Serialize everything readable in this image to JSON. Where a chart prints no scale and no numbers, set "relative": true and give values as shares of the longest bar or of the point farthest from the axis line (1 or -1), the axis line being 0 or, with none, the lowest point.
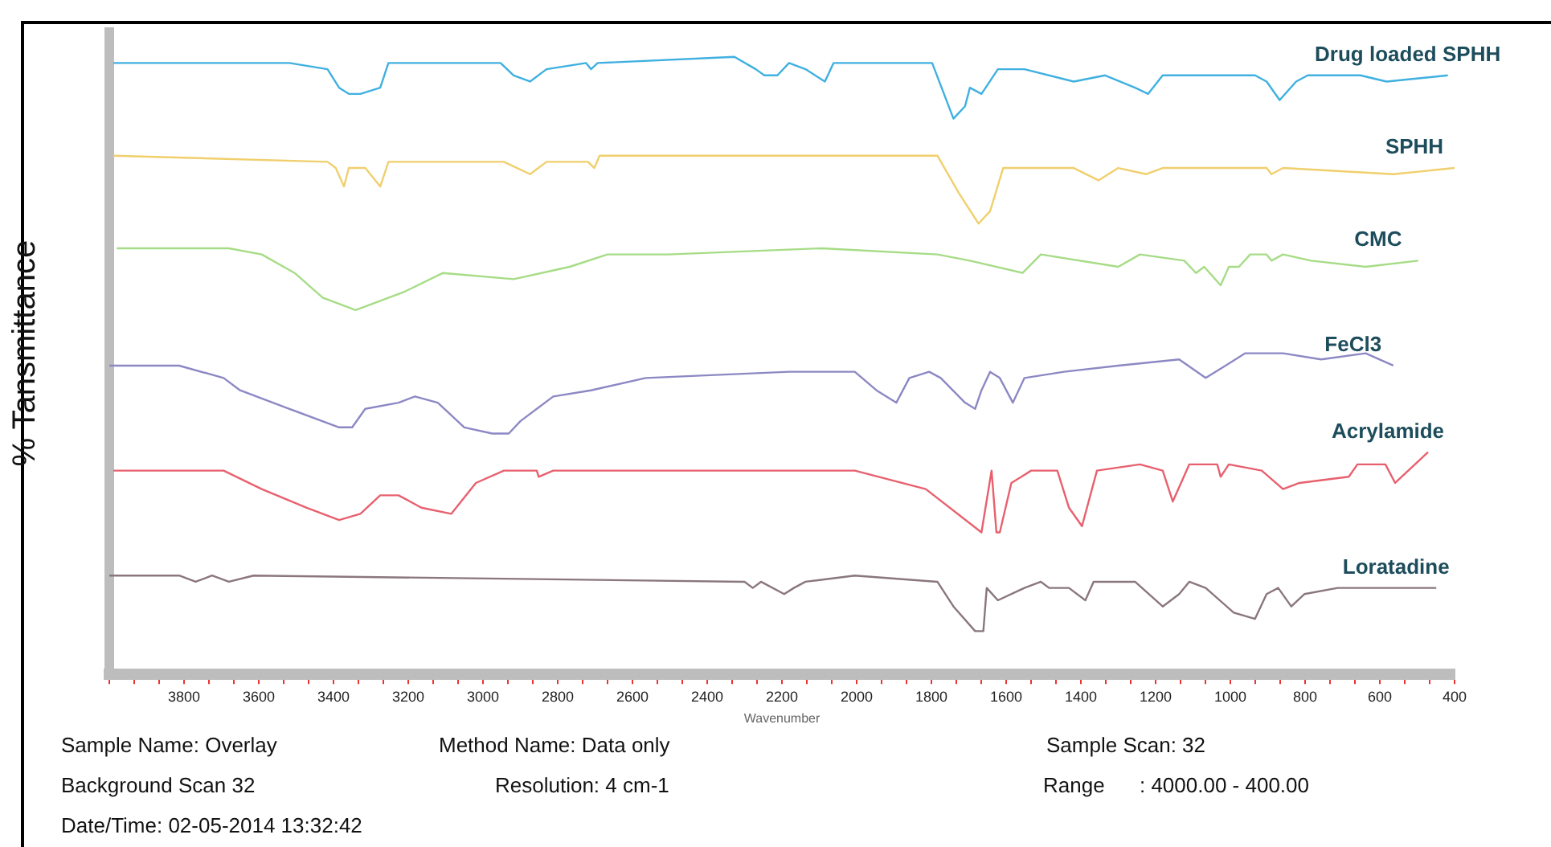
{
  "chart_data": {
    "type": "line",
    "relative": true,
    "xlabel": "Wavenumber",
    "ylabel": "% Tansmittance",
    "xlim": [
      4000,
      400
    ],
    "xticks": [
      {
        "value": 4000,
        "label": null
      },
      {
        "value": 3933.3,
        "label": null
      },
      {
        "value": 3866.7,
        "label": null
      },
      3800,
      {
        "value": 3733.3,
        "label": null
      },
      {
        "value": 3666.7,
        "label": null
      },
      3600,
      {
        "value": 3533.3,
        "label": null
      },
      {
        "value": 3466.7,
        "label": null
      },
      3400,
      {
        "value": 3333.3,
        "label": null
      },
      {
        "value": 3266.7,
        "label": null
      },
      3200,
      {
        "value": 3133.3,
        "label": null
      },
      {
        "value": 3066.7,
        "label": null
      },
      3000,
      {
        "value": 2933.3,
        "label": null
      },
      {
        "value": 2866.7,
        "label": null
      },
      2800,
      {
        "value": 2733.3,
        "label": null
      },
      {
        "value": 2666.7,
        "label": null
      },
      2600,
      {
        "value": 2533.3,
        "label": null
      },
      {
        "value": 2466.7,
        "label": null
      },
      2400,
      {
        "value": 2333.3,
        "label": null
      },
      {
        "value": 2266.7,
        "label": null
      },
      2200,
      {
        "value": 2133.3,
        "label": null
      },
      {
        "value": 2066.7,
        "label": null
      },
      2000,
      {
        "value": 1933.3,
        "label": null
      },
      {
        "value": 1866.7,
        "label": null
      },
      1800,
      {
        "value": 1733.3,
        "label": null
      },
      {
        "value": 1666.7,
        "label": null
      },
      1600,
      {
        "value": 1533.3,
        "label": null
      },
      {
        "value": 1466.7,
        "label": null
      },
      1400,
      {
        "value": 1333.3,
        "label": null
      },
      {
        "value": 1266.7,
        "label": null
      },
      1200,
      {
        "value": 1133.3,
        "label": null
      },
      {
        "value": 1066.7,
        "label": null
      },
      1000,
      {
        "value": 933.3,
        "label": null
      },
      {
        "value": 866.7,
        "label": null
      },
      800,
      {
        "value": 733.3,
        "label": null
      },
      {
        "value": 666.7,
        "label": null
      },
      600,
      {
        "value": 533.3,
        "label": null
      },
      {
        "value": 466.7,
        "label": null
      },
      400
    ],
    "grid": false,
    "legend": false,
    "marker": "none",
    "line_style": "solid",
    "series": [
      {
        "name": "Drug loaded SPHH",
        "color": "#3fb0e0",
        "x": [
          3989,
          3518,
          3416,
          3385,
          3359,
          3328,
          3275,
          3253,
          2953,
          2918,
          2874,
          2830,
          2724,
          2711,
          2693,
          2327,
          2270,
          2247,
          2212,
          2181,
          2137,
          2085,
          2062,
          1798,
          1741,
          1710,
          1697,
          1666,
          1622,
          1551,
          1419,
          1335,
          1255,
          1220,
          1181,
          934,
          903,
          868,
          824,
          793,
          652,
          582,
          418
        ],
        "values": [
          0.99,
          0.99,
          0.98,
          0.95,
          0.94,
          0.94,
          0.95,
          0.99,
          0.99,
          0.97,
          0.96,
          0.98,
          0.99,
          0.98,
          0.99,
          1,
          0.98,
          0.97,
          0.97,
          0.99,
          0.98,
          0.96,
          0.99,
          0.99,
          0.9,
          0.92,
          0.95,
          0.94,
          0.98,
          0.98,
          0.96,
          0.97,
          0.95,
          0.94,
          0.97,
          0.97,
          0.96,
          0.93,
          0.96,
          0.97,
          0.97,
          0.96,
          0.97
        ]
      },
      {
        "name": "SPHH",
        "color": "#f0cf6c",
        "x": [
          3989,
          3416,
          3394,
          3372,
          3359,
          3315,
          3275,
          3253,
          2944,
          2874,
          2830,
          2719,
          2702,
          2688,
          2181,
          2150,
          2093,
          1784,
          1727,
          1674,
          1643,
          1608,
          1419,
          1353,
          1300,
          1225,
          1181,
          903,
          890,
          859,
          564,
          400
        ],
        "values": [
          0.84,
          0.83,
          0.82,
          0.79,
          0.82,
          0.82,
          0.79,
          0.83,
          0.83,
          0.81,
          0.83,
          0.83,
          0.82,
          0.84,
          0.84,
          0.84,
          0.84,
          0.84,
          0.78,
          0.73,
          0.75,
          0.82,
          0.82,
          0.8,
          0.82,
          0.81,
          0.82,
          0.82,
          0.81,
          0.82,
          0.81,
          0.82
        ]
      },
      {
        "name": "CMC",
        "color": "#a6dc86",
        "x": [
          3980,
          3680,
          3592,
          3504,
          3429,
          3341,
          3209,
          3107,
          2918,
          2768,
          2667,
          2504,
          2093,
          1784,
          1697,
          1556,
          1507,
          1300,
          1242,
          1123,
          1092,
          1070,
          1026,
          1004,
          977,
          947,
          903,
          890,
          859,
          784,
          638,
          497
        ],
        "values": [
          0.69,
          0.69,
          0.68,
          0.65,
          0.61,
          0.59,
          0.62,
          0.65,
          0.64,
          0.66,
          0.68,
          0.68,
          0.69,
          0.68,
          0.67,
          0.65,
          0.68,
          0.66,
          0.68,
          0.67,
          0.65,
          0.66,
          0.63,
          0.66,
          0.66,
          0.68,
          0.68,
          0.67,
          0.68,
          0.67,
          0.66,
          0.67
        ]
      },
      {
        "name": "FeCl3",
        "color": "#8c88c4",
        "x": [
          4000,
          3813,
          3694,
          3650,
          3518,
          3385,
          3350,
          3315,
          3226,
          3182,
          3121,
          3050,
          2975,
          2931,
          2900,
          2812,
          2711,
          2565,
          2181,
          2005,
          1947,
          1894,
          1859,
          1806,
          1775,
          1710,
          1683,
          1666,
          1643,
          1617,
          1582,
          1551,
          1445,
          1300,
          1137,
          1066,
          960,
          859,
          757,
          638,
          564
        ],
        "values": [
          0.5,
          0.5,
          0.48,
          0.46,
          0.43,
          0.4,
          0.4,
          0.43,
          0.44,
          0.45,
          0.44,
          0.4,
          0.39,
          0.39,
          0.41,
          0.45,
          0.46,
          0.48,
          0.49,
          0.49,
          0.46,
          0.44,
          0.48,
          0.49,
          0.48,
          0.44,
          0.43,
          0.46,
          0.49,
          0.48,
          0.44,
          0.48,
          0.49,
          0.5,
          0.51,
          0.48,
          0.52,
          0.52,
          0.51,
          0.52,
          0.5
        ]
      },
      {
        "name": "Acrylamide",
        "color": "#e8606e",
        "x": [
          3989,
          3694,
          3592,
          3473,
          3385,
          3328,
          3275,
          3226,
          3165,
          3085,
          3019,
          2944,
          2856,
          2851,
          2812,
          2415,
          2181,
          2005,
          1815,
          1666,
          1639,
          1626,
          1617,
          1586,
          1533,
          1463,
          1432,
          1397,
          1357,
          1242,
          1181,
          1154,
          1110,
          1035,
          1026,
          1004,
          916,
          859,
          815,
          683,
          660,
          585,
          559,
          471
        ],
        "values": [
          0.33,
          0.33,
          0.3,
          0.27,
          0.25,
          0.26,
          0.29,
          0.29,
          0.27,
          0.26,
          0.31,
          0.33,
          0.33,
          0.32,
          0.33,
          0.33,
          0.33,
          0.33,
          0.3,
          0.23,
          0.33,
          0.23,
          0.23,
          0.31,
          0.33,
          0.33,
          0.27,
          0.24,
          0.33,
          0.34,
          0.33,
          0.28,
          0.34,
          0.34,
          0.32,
          0.34,
          0.33,
          0.3,
          0.31,
          0.32,
          0.34,
          0.34,
          0.31,
          0.36
        ]
      },
      {
        "name": "Loratadine",
        "color": "#8a767e",
        "x": [
          4000,
          3813,
          3769,
          3725,
          3680,
          3614,
          2300,
          2278,
          2256,
          2194,
          2168,
          2137,
          2005,
          1784,
          1741,
          1683,
          1661,
          1652,
          1622,
          1551,
          1507,
          1485,
          1432,
          1388,
          1366,
          1255,
          1181,
          1137,
          1110,
          1066,
          991,
          934,
          903,
          872,
          837,
          802,
          713,
          537,
          449
        ],
        "values": [
          0.16,
          0.16,
          0.15,
          0.16,
          0.15,
          0.16,
          0.15,
          0.14,
          0.15,
          0.13,
          0.14,
          0.15,
          0.16,
          0.15,
          0.11,
          0.07,
          0.07,
          0.14,
          0.12,
          0.14,
          0.15,
          0.14,
          0.14,
          0.12,
          0.15,
          0.15,
          0.11,
          0.13,
          0.15,
          0.14,
          0.1,
          0.09,
          0.13,
          0.14,
          0.11,
          0.13,
          0.14,
          0.14,
          0.14
        ]
      }
    ],
    "annotations": [
      "Sample Name: Overlay",
      "Method Name: Data only",
      "Sample Scan: 32",
      "Background Scan 32",
      "Resolution: 4 cm-1",
      "Range      : 4000.00 - 400.00",
      "Date/Time: 02-05-2014 13:32:42"
    ]
  }
}
